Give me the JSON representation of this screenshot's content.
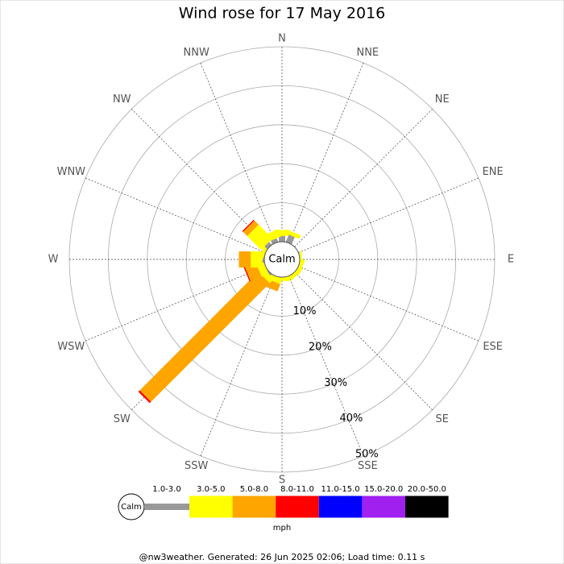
{
  "chart_data": {
    "type": "wind_rose",
    "title": "Wind rose for 17 May 2016",
    "directions": [
      "N",
      "NNE",
      "NE",
      "ENE",
      "E",
      "ESE",
      "SE",
      "SSE",
      "S",
      "SSW",
      "SW",
      "WSW",
      "W",
      "WNW",
      "NW",
      "NNW"
    ],
    "center_label": "Calm",
    "rlim": [
      0,
      50
    ],
    "rticks": [
      {
        "value": 10,
        "label": "10%"
      },
      {
        "value": 20,
        "label": "20%"
      },
      {
        "value": 30,
        "label": "30%"
      },
      {
        "value": 40,
        "label": "40%"
      },
      {
        "value": 50,
        "label": "50%"
      }
    ],
    "unit": "mph",
    "series": [
      {
        "name": "1.0-3.0",
        "color": "#999999",
        "values": [
          1.5,
          2,
          0,
          0,
          0,
          0,
          0,
          0,
          0,
          0,
          0.5,
          0,
          0.5,
          0,
          1,
          1
        ]
      },
      {
        "name": "3.0-5.0",
        "color": "#ffff00",
        "values": [
          1.5,
          1,
          0,
          0,
          0.5,
          1,
          1,
          0.5,
          1,
          1.5,
          1.5,
          2,
          3,
          1,
          5,
          2
        ]
      },
      {
        "name": "5.0-8.0",
        "color": "#ffa500",
        "values": [
          0,
          0,
          0,
          0,
          0,
          0,
          0,
          0,
          0,
          2,
          43,
          3,
          3,
          0,
          1.5,
          0
        ]
      },
      {
        "name": "8.0-11.0",
        "color": "#ff0000",
        "values": [
          0,
          0,
          0,
          0,
          0,
          0,
          0,
          0,
          0,
          0,
          0.5,
          0.3,
          0,
          0,
          0.3,
          0
        ]
      },
      {
        "name": "11.0-15.0",
        "color": "#0000ff",
        "values": [
          0,
          0,
          0,
          0,
          0,
          0,
          0,
          0,
          0,
          0,
          0,
          0,
          0,
          0,
          0,
          0
        ]
      },
      {
        "name": "15.0-20.0",
        "color": "#a020f0",
        "values": [
          0,
          0,
          0,
          0,
          0,
          0,
          0,
          0,
          0,
          0,
          0,
          0,
          0,
          0,
          0,
          0
        ]
      },
      {
        "name": "20.0-50.0",
        "color": "#000000",
        "values": [
          0,
          0,
          0,
          0,
          0,
          0,
          0,
          0,
          0,
          0,
          0,
          0,
          0,
          0,
          0,
          0
        ]
      }
    ],
    "footer": "@nw3weather. Generated: 26 Jun 2025 02:06; Load time: 0.11 s"
  }
}
